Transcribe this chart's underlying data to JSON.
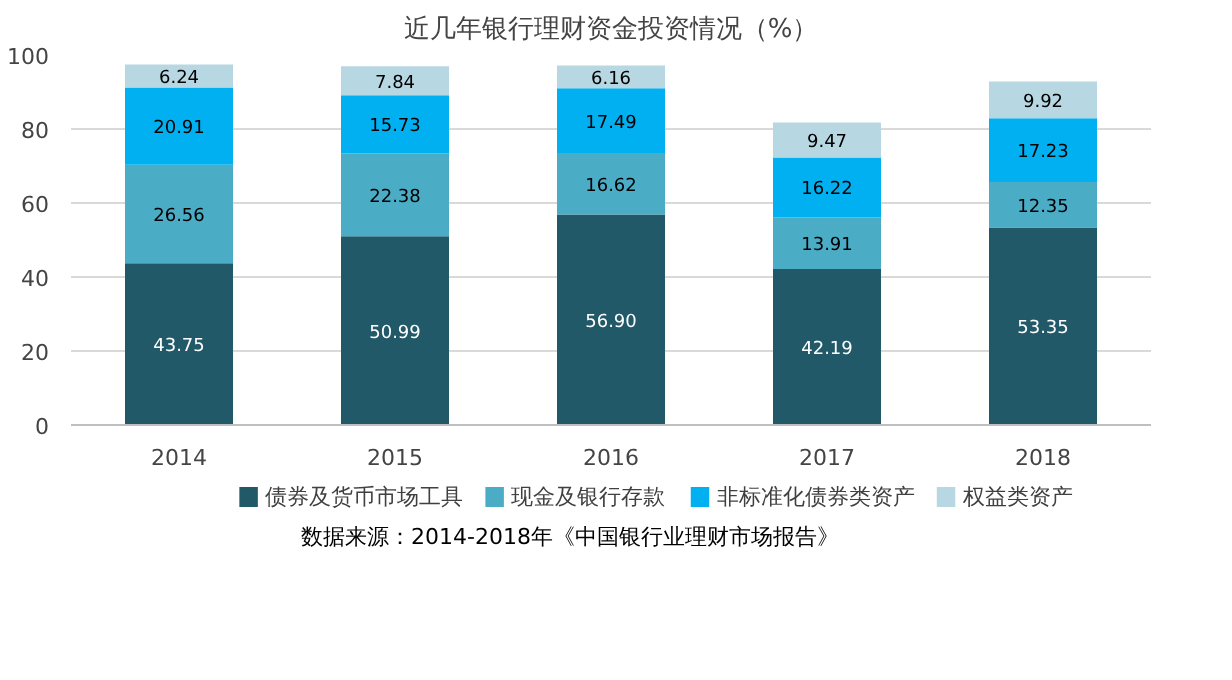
{
  "chart_data": {
    "type": "bar",
    "stacked": true,
    "title": "近几年银行理财资金投资情况（%）",
    "categories": [
      "2014",
      "2015",
      "2016",
      "2017",
      "2018"
    ],
    "series": [
      {
        "name": "债券及货币市场工具",
        "color": "#215968",
        "values": [
          43.75,
          50.99,
          56.9,
          42.19,
          53.35
        ],
        "value_labels": [
          "43.75",
          "50.99",
          "56.90",
          "42.19",
          "53.35"
        ]
      },
      {
        "name": "现金及银行存款",
        "color": "#4bacc6",
        "values": [
          26.56,
          22.38,
          16.62,
          13.91,
          12.35
        ],
        "value_labels": [
          "26.56",
          "22.38",
          "16.62",
          "13.91",
          "12.35"
        ]
      },
      {
        "name": "非标准化债券类资产",
        "color": "#00b0f0",
        "values": [
          20.91,
          15.73,
          17.49,
          16.22,
          17.23
        ],
        "value_labels": [
          "20.91",
          "15.73",
          "17.49",
          "16.22",
          "17.23"
        ]
      },
      {
        "name": "权益类资产",
        "color": "#b7d7e2",
        "values": [
          6.24,
          7.84,
          6.16,
          9.47,
          9.92
        ],
        "value_labels": [
          "6.24",
          "7.84",
          "6.16",
          "9.47",
          "9.92"
        ]
      }
    ],
    "ylim": [
      0,
      100
    ],
    "yticks": [
      0,
      20,
      40,
      60,
      80,
      100
    ],
    "grid": "y",
    "legend": "bottom",
    "annotations": [
      "数据来源：2014-2018年《中国银行业理财市场报告》"
    ]
  }
}
